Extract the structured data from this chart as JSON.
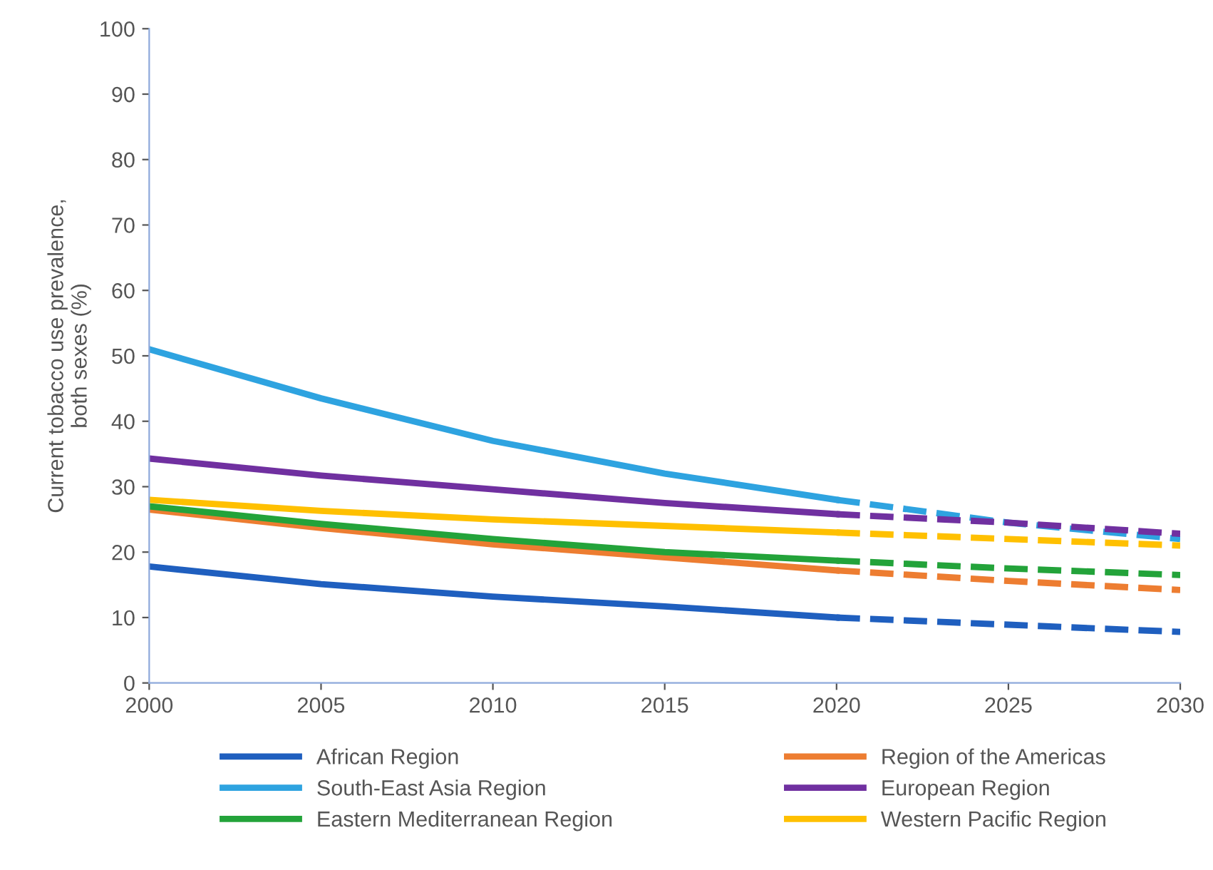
{
  "chart_data": {
    "type": "line",
    "ylabel": "Current tobacco use prevalence,\nboth sexes (%)",
    "xlim": [
      2000,
      2030
    ],
    "xticks": [
      2000,
      2005,
      2010,
      2015,
      2020,
      2025,
      2030
    ],
    "ylim": [
      0,
      100
    ],
    "yticks": [
      0,
      10,
      20,
      30,
      40,
      50,
      60,
      70,
      80,
      90,
      100
    ],
    "grid": false,
    "legend": "bottom",
    "marker": "none",
    "series": [
      {
        "name": "African Region",
        "color": "#1f5fbf",
        "line_style": "solid",
        "x": [
          2000,
          2005,
          2010,
          2015,
          2020
        ],
        "values": [
          17.8,
          15.1,
          13.2,
          11.7,
          10
        ]
      },
      {
        "name": "Region of the Americas",
        "color": "#ed7d31",
        "line_style": "solid",
        "x": [
          2000,
          2005,
          2010,
          2015,
          2020
        ],
        "values": [
          26.5,
          23.7,
          21.2,
          19.2,
          17.2
        ]
      },
      {
        "name": "South-East Asia Region",
        "color": "#2ea3e0",
        "line_style": "solid",
        "x": [
          2000,
          2005,
          2010,
          2015,
          2020
        ],
        "values": [
          51,
          43.5,
          37,
          32,
          28
        ]
      },
      {
        "name": "European Region",
        "color": "#7030a0",
        "line_style": "solid",
        "x": [
          2000,
          2005,
          2010,
          2015,
          2020
        ],
        "values": [
          34.3,
          31.7,
          29.6,
          27.5,
          25.8
        ]
      },
      {
        "name": "Eastern Mediterranean Region",
        "color": "#23a33a",
        "line_style": "solid",
        "x": [
          2000,
          2005,
          2010,
          2015,
          2020
        ],
        "values": [
          27,
          24.3,
          22,
          20,
          18.7
        ]
      },
      {
        "name": "Western Pacific Region",
        "color": "#ffc000",
        "line_style": "solid",
        "x": [
          2000,
          2005,
          2010,
          2015,
          2020
        ],
        "values": [
          28,
          26.3,
          25,
          24,
          23
        ]
      },
      {
        "color": "#1f5fbf",
        "line_style": "dashed",
        "x": [
          2020,
          2025,
          2030
        ],
        "values": [
          10,
          8.9,
          7.8
        ]
      },
      {
        "color": "#ed7d31",
        "line_style": "dashed",
        "x": [
          2020,
          2025,
          2030
        ],
        "values": [
          17.2,
          15.6,
          14.2
        ]
      },
      {
        "color": "#2ea3e0",
        "line_style": "dashed",
        "x": [
          2020,
          2025,
          2030
        ],
        "values": [
          28,
          24.5,
          22
        ]
      },
      {
        "color": "#7030a0",
        "line_style": "dashed",
        "x": [
          2020,
          2025,
          2030
        ],
        "values": [
          25.8,
          24.5,
          22.8
        ]
      },
      {
        "color": "#23a33a",
        "line_style": "dashed",
        "x": [
          2020,
          2025,
          2030
        ],
        "values": [
          18.7,
          17.5,
          16.5
        ]
      },
      {
        "color": "#ffc000",
        "line_style": "dashed",
        "x": [
          2020,
          2025,
          2030
        ],
        "values": [
          23,
          22,
          21
        ]
      }
    ]
  }
}
